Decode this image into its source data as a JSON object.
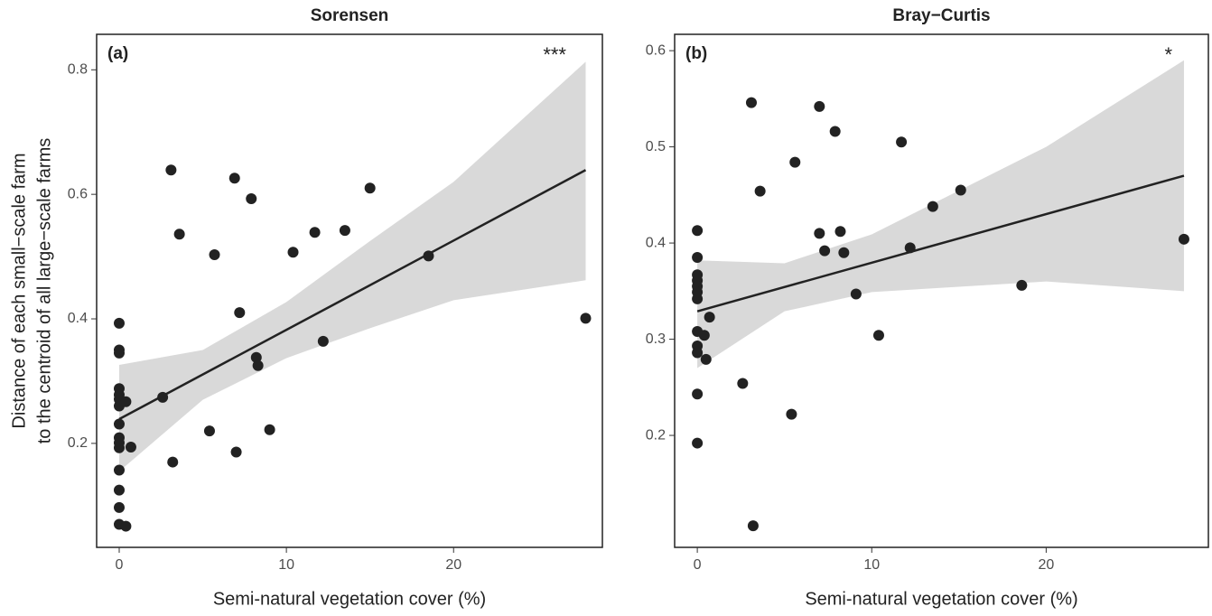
{
  "chart_data": [
    {
      "type": "scatter",
      "title": "Sorensen",
      "panel_label": "(a)",
      "significance": "***",
      "xlabel": "Semi-natural vegetation cover (%)",
      "ylabel": [
        "Distance of each small−scale farm",
        "to the centroid of all large−scale farms"
      ],
      "xlim": [
        -1.35,
        28.9
      ],
      "ylim": [
        0.033,
        0.857
      ],
      "xticks": [
        0,
        10,
        20
      ],
      "yticks": [
        0.2,
        0.4,
        0.6,
        0.8
      ],
      "color": "#222222",
      "band_color": "#d9d9d9",
      "x": [
        0,
        0,
        0,
        0,
        0,
        0,
        0,
        0,
        0,
        0,
        0,
        0,
        0,
        0,
        0,
        0.4,
        0.4,
        0.7,
        2.6,
        3.1,
        3.2,
        3.6,
        5.4,
        5.7,
        6.9,
        7.0,
        7.2,
        7.9,
        8.2,
        8.3,
        9.0,
        10.4,
        11.7,
        12.2,
        13.5,
        15.0,
        18.5,
        27.9
      ],
      "y": [
        0.393,
        0.35,
        0.345,
        0.288,
        0.278,
        0.271,
        0.26,
        0.231,
        0.209,
        0.201,
        0.193,
        0.157,
        0.125,
        0.097,
        0.07,
        0.067,
        0.267,
        0.194,
        0.274,
        0.639,
        0.17,
        0.536,
        0.22,
        0.503,
        0.626,
        0.186,
        0.41,
        0.593,
        0.338,
        0.325,
        0.222,
        0.507,
        0.539,
        0.364,
        0.542,
        0.61,
        0.501,
        0.401
      ],
      "fit_line": {
        "x": [
          0,
          27.9
        ],
        "y": [
          0.239,
          0.639
        ]
      },
      "band": {
        "x": [
          0,
          5,
          10,
          15,
          20,
          27.9
        ],
        "lower": [
          0.155,
          0.27,
          0.337,
          0.385,
          0.43,
          0.462
        ],
        "upper": [
          0.326,
          0.35,
          0.427,
          0.525,
          0.62,
          0.813
        ]
      }
    },
    {
      "type": "scatter",
      "title": "Bray−Curtis",
      "panel_label": "(b)",
      "significance": "*",
      "xlabel": "Semi-natural vegetation cover (%)",
      "xlim": [
        -1.3,
        29.3
      ],
      "ylim": [
        0.0836,
        0.617
      ],
      "xticks": [
        0,
        10,
        20
      ],
      "yticks": [
        0.2,
        0.3,
        0.4,
        0.5,
        0.6
      ],
      "color": "#222222",
      "band_color": "#d9d9d9",
      "x": [
        0,
        0,
        0,
        0,
        0,
        0,
        0,
        0,
        0,
        0,
        0,
        0,
        0.4,
        0.5,
        0.7,
        2.6,
        3.1,
        3.2,
        3.6,
        5.6,
        5.4,
        7.0,
        7.0,
        7.3,
        7.9,
        8.2,
        8.4,
        9.1,
        10.4,
        11.7,
        12.2,
        13.5,
        15.1,
        18.6,
        27.9
      ],
      "y": [
        0.413,
        0.385,
        0.367,
        0.361,
        0.355,
        0.349,
        0.342,
        0.308,
        0.293,
        0.286,
        0.243,
        0.192,
        0.304,
        0.279,
        0.323,
        0.254,
        0.546,
        0.106,
        0.454,
        0.484,
        0.222,
        0.542,
        0.41,
        0.392,
        0.516,
        0.412,
        0.39,
        0.347,
        0.304,
        0.505,
        0.395,
        0.438,
        0.455,
        0.356,
        0.404
      ],
      "fit_line": {
        "x": [
          0,
          27.9
        ],
        "y": [
          0.329,
          0.47
        ]
      },
      "band": {
        "x": [
          0,
          5,
          10,
          20,
          27.9
        ],
        "lower": [
          0.27,
          0.329,
          0.349,
          0.36,
          0.35
        ],
        "upper": [
          0.382,
          0.379,
          0.409,
          0.5,
          0.59
        ]
      }
    }
  ]
}
